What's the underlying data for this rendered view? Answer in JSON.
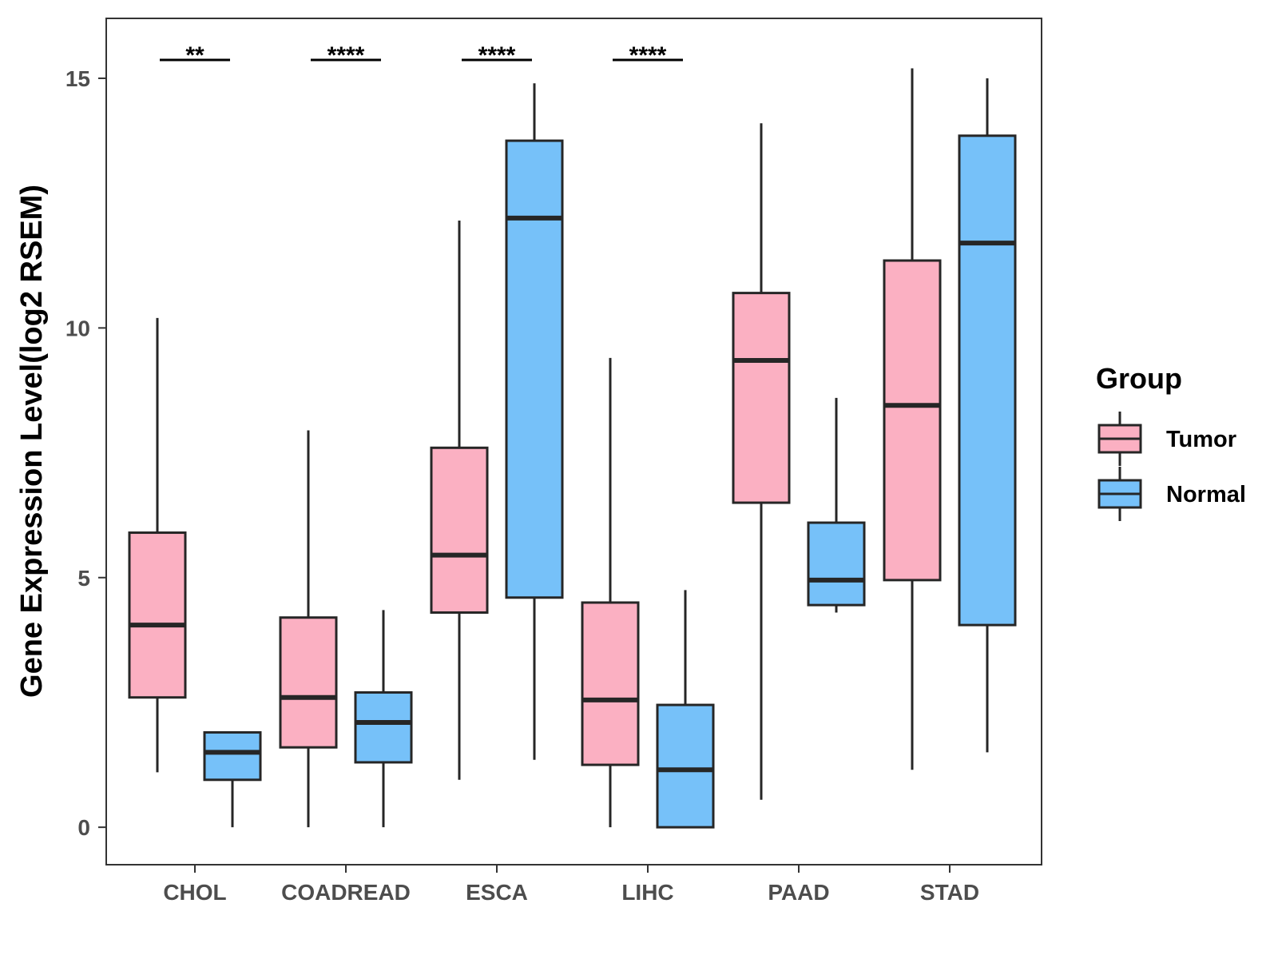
{
  "chart_data": {
    "type": "boxplot",
    "title": "",
    "xlabel": "",
    "ylabel": "Gene Expression Level(log2 RSEM)",
    "ylim": [
      -0.75,
      16.2
    ],
    "yticks": [
      0,
      5,
      10,
      15
    ],
    "grid": false,
    "legend": {
      "title": "Group",
      "position": "right",
      "entries": [
        {
          "name": "Tumor",
          "color": "#FBB0C2"
        },
        {
          "name": "Normal",
          "color": "#76C1F9"
        }
      ]
    },
    "categories": [
      "CHOL",
      "COADREAD",
      "ESCA",
      "LIHC",
      "PAAD",
      "STAD"
    ],
    "series": [
      {
        "name": "Tumor",
        "color": "#FBB0C2",
        "boxes": [
          {
            "min": 1.1,
            "q1": 2.6,
            "median": 4.05,
            "q3": 5.9,
            "max": 10.2
          },
          {
            "min": 0.0,
            "q1": 1.6,
            "median": 2.6,
            "q3": 4.2,
            "max": 7.95
          },
          {
            "min": 0.95,
            "q1": 4.3,
            "median": 5.45,
            "q3": 7.6,
            "max": 12.15
          },
          {
            "min": 0.0,
            "q1": 1.25,
            "median": 2.55,
            "q3": 4.5,
            "max": 9.4
          },
          {
            "min": 0.55,
            "q1": 6.5,
            "median": 9.35,
            "q3": 10.7,
            "max": 14.1
          },
          {
            "min": 1.15,
            "q1": 4.95,
            "median": 8.45,
            "q3": 11.35,
            "max": 15.2
          }
        ]
      },
      {
        "name": "Normal",
        "color": "#76C1F9",
        "boxes": [
          {
            "min": 0.0,
            "q1": 0.95,
            "median": 1.5,
            "q3": 1.9,
            "max": 1.9
          },
          {
            "min": 0.0,
            "q1": 1.3,
            "median": 2.1,
            "q3": 2.7,
            "max": 4.35
          },
          {
            "min": 1.35,
            "q1": 4.6,
            "median": 12.2,
            "q3": 13.75,
            "max": 14.9
          },
          {
            "min": 0.0,
            "q1": 0.0,
            "median": 1.15,
            "q3": 2.45,
            "max": 4.75
          },
          {
            "min": 4.3,
            "q1": 4.45,
            "median": 4.95,
            "q3": 6.1,
            "max": 8.6
          },
          {
            "min": 1.5,
            "q1": 4.05,
            "median": 11.7,
            "q3": 13.85,
            "max": 15.0
          }
        ]
      }
    ],
    "annotations": [
      {
        "category": "CHOL",
        "label": "**"
      },
      {
        "category": "COADREAD",
        "label": "****"
      },
      {
        "category": "ESCA",
        "label": "****"
      },
      {
        "category": "LIHC",
        "label": "****"
      }
    ],
    "line_color": "#262626",
    "panel_border_color": "#333333"
  }
}
